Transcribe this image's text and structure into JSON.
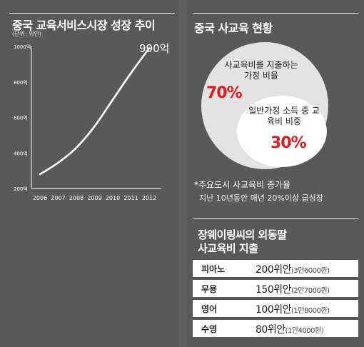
{
  "left_panel": {
    "title": "중국 교육서비스시장 성장 추이",
    "unit": "(단위: 위안)",
    "callout": "990억"
  },
  "chart_data": {
    "type": "line",
    "title": "중국 교육서비스시장 성장 추이",
    "unit_label": "(단위: 위안)",
    "x": [
      "2006",
      "2007",
      "2008",
      "2009",
      "2010",
      "2011",
      "2012"
    ],
    "series": [
      {
        "values": [
          280,
          345,
          430,
          550,
          700,
          850,
          990
        ]
      }
    ],
    "yticks": [
      "200억",
      "400억",
      "600억",
      "800억",
      "1000억"
    ],
    "ytick_values": [
      200,
      400,
      600,
      800,
      1000
    ],
    "ylim": [
      200,
      1000
    ],
    "grid": false,
    "annotation": "990억",
    "line_color": "#ffffff"
  },
  "right_panel": {
    "title": "중국 사교육 현황",
    "outer_label": "사교육비를 지출하는 가정 비율",
    "outer_pct": "70%",
    "inner_label": "일반가정 소득 중 교육비 비중",
    "inner_pct": "30%",
    "note_title": "*주요도시 사교육비 증가율",
    "note_text": "지난 10년동안 매년 20%이상 급성장",
    "expense_title_line1": "장웨이링씨의 외동딸",
    "expense_title_line2": "사교육비 지출",
    "expenses": [
      {
        "category": "피아노",
        "amount": "200위안",
        "detail": "(3만6000원)"
      },
      {
        "category": "무용",
        "amount": "150위안",
        "detail": "(2만7000원)"
      },
      {
        "category": "영어",
        "amount": "100위안",
        "detail": "(1만8000원)"
      },
      {
        "category": "수영",
        "amount": "80위안",
        "detail": "(1만4000원)"
      }
    ]
  },
  "colors": {
    "background": "#5e5e5e",
    "panel": "#595959",
    "text": "#ffffff",
    "accent_red": "#d81e1e",
    "outer_circle": "#e3e3e3",
    "inner_circle": "#ffffff"
  }
}
